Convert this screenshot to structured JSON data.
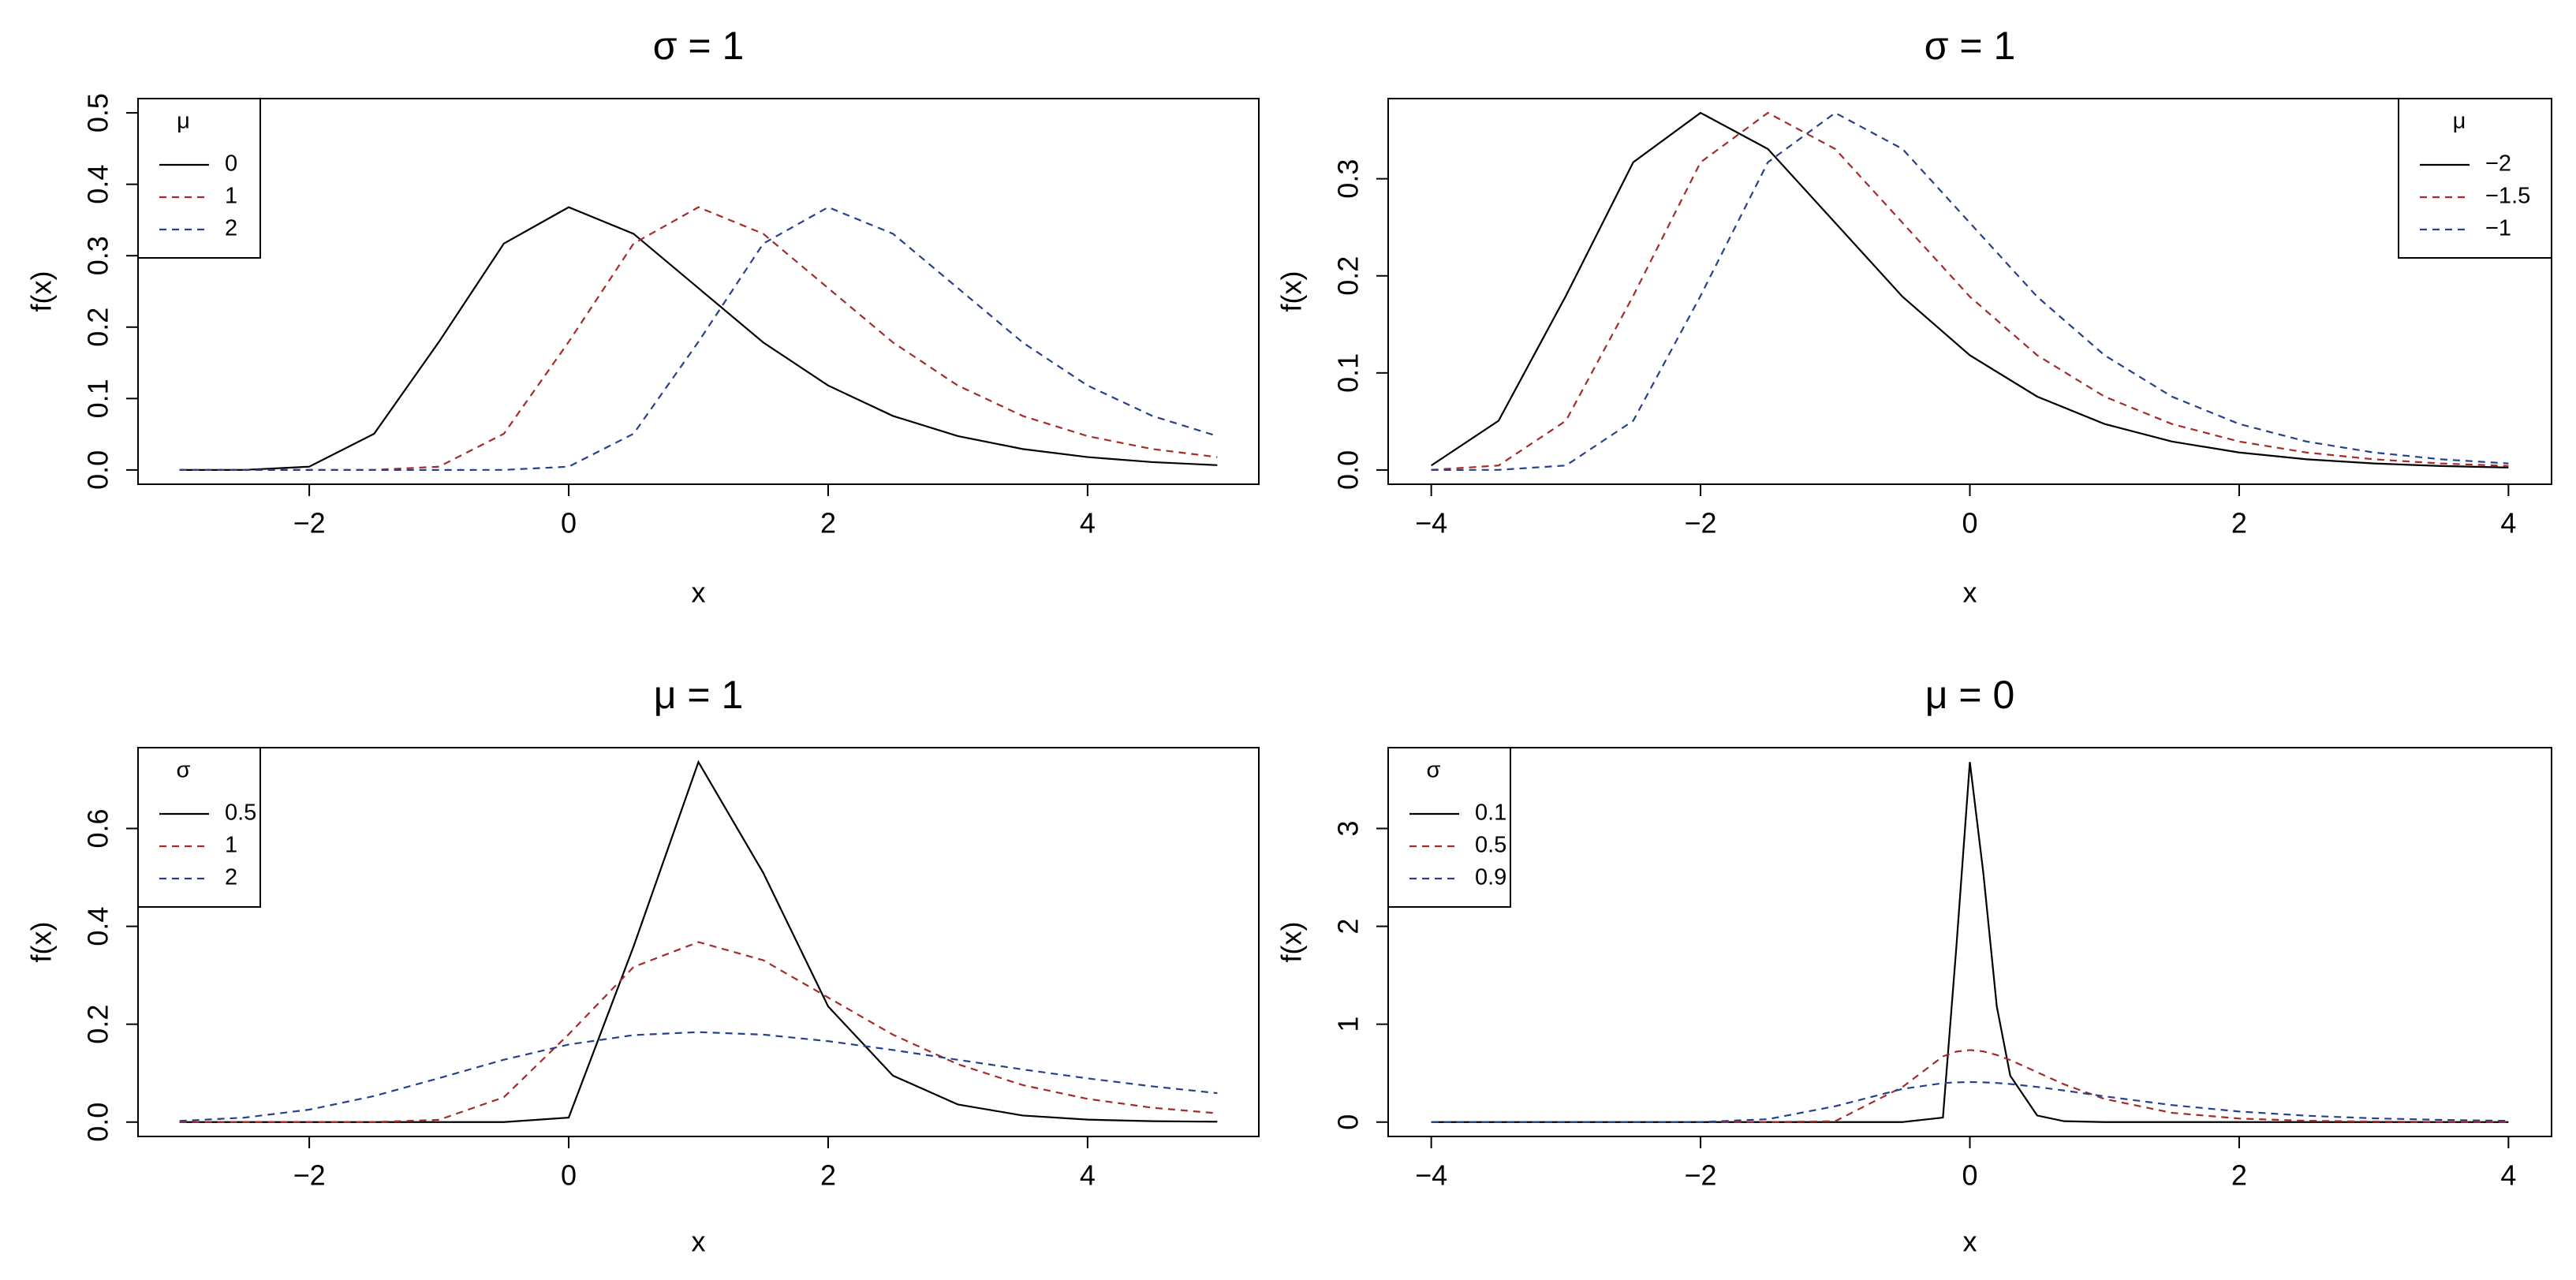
{
  "chart_data": [
    {
      "type": "line",
      "title": "σ = 1",
      "xlabel": "x",
      "ylabel": "f(x)",
      "legend_title": "μ",
      "legend_position": "top-left",
      "x": [
        -3,
        -2.5,
        -2,
        -1.5,
        -1,
        -0.5,
        0,
        0.5,
        1,
        1.5,
        2,
        2.5,
        3,
        3.5,
        4,
        4.5,
        5
      ],
      "series": [
        {
          "name": "0",
          "color": "#000000",
          "linestyle": "solid",
          "values": [
            0,
            0.0001,
            0.0046,
            0.0507,
            0.1794,
            0.317,
            0.3679,
            0.3307,
            0.2546,
            0.1785,
            0.1182,
            0.0756,
            0.0474,
            0.0293,
            0.018,
            0.011,
            0.0067
          ]
        },
        {
          "name": "1",
          "color": "#a52a2a",
          "linestyle": "dashed",
          "values": [
            0,
            0,
            0,
            0.0001,
            0.0046,
            0.0507,
            0.1794,
            0.317,
            0.3679,
            0.3307,
            0.2546,
            0.1785,
            0.1182,
            0.0756,
            0.0474,
            0.0293,
            0.018
          ]
        },
        {
          "name": "2",
          "color": "#27408b",
          "linestyle": "dashed",
          "values": [
            0,
            0,
            0,
            0,
            0,
            0.0001,
            0.0046,
            0.0507,
            0.1794,
            0.317,
            0.3679,
            0.3307,
            0.2546,
            0.1785,
            0.1182,
            0.0756,
            0.0474
          ]
        }
      ],
      "xlim": [
        -3.32,
        5.32
      ],
      "ylim": [
        -0.02,
        0.52
      ],
      "xticks": [
        {
          "value": -2,
          "label": "−2"
        },
        0,
        2,
        4
      ],
      "yticks": [
        {
          "value": 0,
          "label": "0.0"
        },
        0.1,
        0.2,
        0.3,
        0.4,
        0.5
      ]
    },
    {
      "type": "line",
      "title": "σ = 1",
      "xlabel": "x",
      "ylabel": "f(x)",
      "legend_title": "μ",
      "legend_position": "top-right",
      "x": [
        -4,
        -3.5,
        -3,
        -2.5,
        -2,
        -1.5,
        -1,
        -0.5,
        0,
        0.5,
        1,
        1.5,
        2,
        2.5,
        3,
        3.5,
        4
      ],
      "series": [
        {
          "name": "−2",
          "color": "#000000",
          "linestyle": "solid",
          "values": [
            0.0046,
            0.0507,
            0.1794,
            0.317,
            0.3679,
            0.3307,
            0.2546,
            0.1785,
            0.1182,
            0.0756,
            0.0474,
            0.0293,
            0.018,
            0.011,
            0.0067,
            0.0041,
            0.0025
          ]
        },
        {
          "name": "−1.5",
          "color": "#a52a2a",
          "linestyle": "dashed",
          "values": [
            0.0001,
            0.0046,
            0.0507,
            0.1794,
            0.317,
            0.3679,
            0.3307,
            0.2546,
            0.1785,
            0.1182,
            0.0756,
            0.0474,
            0.0293,
            0.018,
            0.011,
            0.0067,
            0.0041
          ]
        },
        {
          "name": "−1",
          "color": "#27408b",
          "linestyle": "dashed",
          "values": [
            0,
            0.0001,
            0.0046,
            0.0507,
            0.1794,
            0.317,
            0.3679,
            0.3307,
            0.2546,
            0.1785,
            0.1182,
            0.0756,
            0.0474,
            0.0293,
            0.018,
            0.011,
            0.0067
          ]
        }
      ],
      "xlim": [
        -4.32,
        4.32
      ],
      "ylim": [
        -0.0147,
        0.3826
      ],
      "xticks": [
        {
          "value": -4,
          "label": "−4"
        },
        {
          "value": -2,
          "label": "−2"
        },
        0,
        2,
        4
      ],
      "yticks": [
        {
          "value": 0,
          "label": "0.0"
        },
        0.1,
        0.2,
        0.3
      ]
    },
    {
      "type": "line",
      "title": "μ = 1",
      "xlabel": "x",
      "ylabel": "f(x)",
      "legend_title": "σ",
      "legend_position": "top-left",
      "x": [
        -3,
        -2.5,
        -2,
        -1.5,
        -1,
        -0.5,
        0,
        0.5,
        1,
        1.5,
        2,
        2.5,
        3,
        3.5,
        4,
        4.5,
        5
      ],
      "series": [
        {
          "name": "0.5",
          "color": "#000000",
          "linestyle": "solid",
          "values": [
            0,
            0,
            0,
            0,
            0,
            0,
            0.0092,
            0.3588,
            0.7358,
            0.5092,
            0.2364,
            0.0948,
            0.036,
            0.0134,
            0.005,
            0.0018,
            0.0007
          ]
        },
        {
          "name": "1",
          "color": "#a52a2a",
          "linestyle": "dashed",
          "values": [
            0,
            0,
            0,
            0.0001,
            0.0046,
            0.0507,
            0.1794,
            0.317,
            0.3679,
            0.3307,
            0.2546,
            0.1785,
            0.1182,
            0.0756,
            0.0474,
            0.0293,
            0.018
          ]
        },
        {
          "name": "2",
          "color": "#27408b",
          "linestyle": "dashed",
          "values": [
            0.0023,
            0.0091,
            0.0254,
            0.0532,
            0.0897,
            0.1274,
            0.1585,
            0.1778,
            0.1839,
            0.1787,
            0.1654,
            0.1473,
            0.1273,
            0.1076,
            0.0893,
            0.073,
            0.0591
          ]
        }
      ],
      "xlim": [
        -3.32,
        5.32
      ],
      "ylim": [
        -0.0294,
        0.7652
      ],
      "xticks": [
        {
          "value": -2,
          "label": "−2"
        },
        0,
        2,
        4
      ],
      "yticks": [
        {
          "value": 0,
          "label": "0.0"
        },
        0.2,
        0.4,
        0.6
      ]
    },
    {
      "type": "line",
      "title": "μ = 0",
      "xlabel": "x",
      "ylabel": "f(x)",
      "legend_title": "σ",
      "legend_position": "top-left",
      "x": [
        -4,
        -3.5,
        -3,
        -2.5,
        -2,
        -1.5,
        -1,
        -0.5,
        -0.2,
        -0.1,
        0,
        0.1,
        0.2,
        0.3,
        0.5,
        0.7,
        1,
        1.5,
        2,
        2.5,
        3,
        3.5,
        4
      ],
      "series": [
        {
          "name": "0.1",
          "color": "#000000",
          "linestyle": "solid",
          "values": [
            0,
            0,
            0,
            0,
            0,
            0,
            0,
            0,
            0.046,
            1.794,
            3.679,
            2.546,
            1.182,
            0.474,
            0.067,
            0.009,
            0,
            0,
            0,
            0,
            0,
            0,
            0
          ]
        },
        {
          "name": "0.5",
          "color": "#a52a2a",
          "linestyle": "dashed",
          "values": [
            0,
            0,
            0,
            0,
            0,
            0,
            0.0092,
            0.3588,
            0.6712,
            0.7202,
            0.7358,
            0.7222,
            0.6858,
            0.634,
            0.5092,
            0.3854,
            0.2364,
            0.0948,
            0.036,
            0.0134,
            0.005,
            0.0018,
            0.0007
          ]
        },
        {
          "name": "0.9",
          "color": "#27408b",
          "linestyle": "dashed",
          "values": [
            0,
            0,
            0,
            0,
            0.001,
            0.0295,
            0.1619,
            0.339,
            0.3979,
            0.4061,
            0.4088,
            0.4063,
            0.3995,
            0.3889,
            0.359,
            0.3224,
            0.2632,
            0.1737,
            0.1081,
            0.0649,
            0.0382,
            0.0223,
            0.0129
          ]
        }
      ],
      "xlim": [
        -4.32,
        4.32
      ],
      "ylim": [
        -0.147,
        3.826
      ],
      "xticks": [
        {
          "value": -4,
          "label": "−4"
        },
        {
          "value": -2,
          "label": "−2"
        },
        0,
        2,
        4
      ],
      "yticks": [
        0,
        1,
        2,
        3
      ]
    }
  ]
}
